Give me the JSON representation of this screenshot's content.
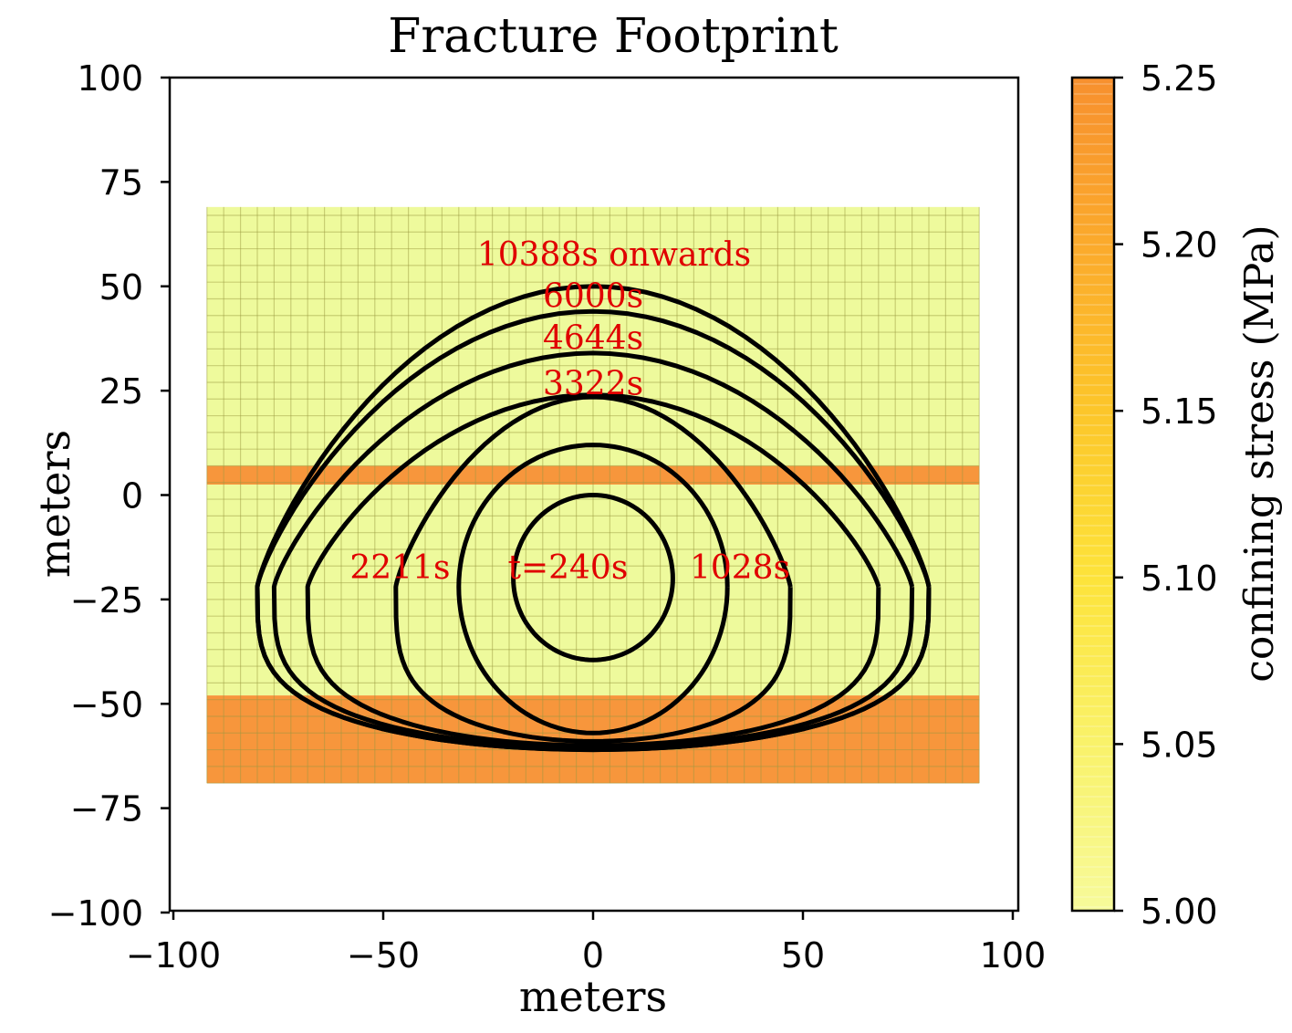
{
  "chart_data": {
    "type": "contour",
    "title": "Fracture Footprint",
    "xlabel": "meters",
    "ylabel": "meters",
    "xlim": [
      -100,
      100
    ],
    "ylim": [
      -100,
      100
    ],
    "xticks": [
      -100,
      -50,
      0,
      50,
      100
    ],
    "xtick_labels": [
      "−100",
      "−50",
      "0",
      "50",
      "100"
    ],
    "yticks": [
      100,
      75,
      50,
      25,
      0,
      -25,
      -50,
      -75,
      -100
    ],
    "ytick_labels": [
      "100",
      "75",
      "50",
      "25",
      "0",
      "−25",
      "−50",
      "−75",
      "−100"
    ],
    "grid": false,
    "background_mesh": {
      "x_range": [
        -92,
        92
      ],
      "y_range": [
        -69,
        69
      ],
      "cell_size": 4,
      "layers": [
        {
          "y_top": 69,
          "y_bottom": 7,
          "stress_MPa": 5.0,
          "color": "#eefa9c"
        },
        {
          "y_top": 7,
          "y_bottom": 2.5,
          "stress_MPa": 5.25,
          "color": "#f7963c"
        },
        {
          "y_top": 2.5,
          "y_bottom": -48,
          "stress_MPa": 5.0,
          "color": "#eefa9c"
        },
        {
          "y_top": -48,
          "y_bottom": -69,
          "stress_MPa": 5.25,
          "color": "#f7963c"
        }
      ]
    },
    "colorbar": {
      "label": "confining stress (MPa)",
      "min": 5.0,
      "max": 5.25,
      "ticks": [
        5.25,
        5.2,
        5.15,
        5.1,
        5.05,
        5.0
      ],
      "tick_labels": [
        "5.25",
        "5.20",
        "5.15",
        "5.10",
        "5.05",
        "5.00"
      ],
      "colors": [
        "#f7fa9a",
        "#f9f26a",
        "#fde33a",
        "#fcc62a",
        "#fbaa2c",
        "#f7902e"
      ]
    },
    "series": [
      {
        "name": "t=240s",
        "time_s": 240,
        "center": [
          0,
          -20
        ],
        "half_width": 19,
        "top": 0,
        "bottom": -39.5
      },
      {
        "name": "1028s",
        "time_s": 1028,
        "center": [
          0,
          -22
        ],
        "half_width": 32,
        "top": 12,
        "bottom": -57
      },
      {
        "name": "2211s",
        "time_s": 2211,
        "center": [
          0,
          -22
        ],
        "half_width": 47,
        "top": 23.5,
        "bottom": -59
      },
      {
        "name": "3322s",
        "time_s": 3322,
        "center": [
          0,
          -22
        ],
        "half_width": 68,
        "top": 24,
        "bottom": -60
      },
      {
        "name": "4644s",
        "time_s": 4644,
        "center": [
          0,
          -22
        ],
        "half_width": 76,
        "top": 34,
        "bottom": -60.5
      },
      {
        "name": "6000s",
        "time_s": 6000,
        "center": [
          0,
          -22
        ],
        "half_width": 80,
        "top": 44,
        "bottom": -61
      },
      {
        "name": "10388s onwards",
        "time_s": 10388,
        "center": [
          0,
          -22
        ],
        "half_width": 80,
        "top": 50,
        "bottom": -61
      }
    ],
    "annotations": [
      {
        "text": "10388s onwards",
        "x": 5,
        "y": 55,
        "color": "#e00000"
      },
      {
        "text": "6000s",
        "x": 0,
        "y": 45,
        "color": "#e00000"
      },
      {
        "text": "4644s",
        "x": 0,
        "y": 35,
        "color": "#e00000"
      },
      {
        "text": "3322s",
        "x": 0,
        "y": 24,
        "color": "#e00000"
      },
      {
        "text": "2211s",
        "x": -46,
        "y": -20,
        "color": "#e00000"
      },
      {
        "text": "t=240s",
        "x": -6,
        "y": -20,
        "color": "#e00000"
      },
      {
        "text": "1028s",
        "x": 35,
        "y": -20,
        "color": "#e00000"
      }
    ]
  }
}
